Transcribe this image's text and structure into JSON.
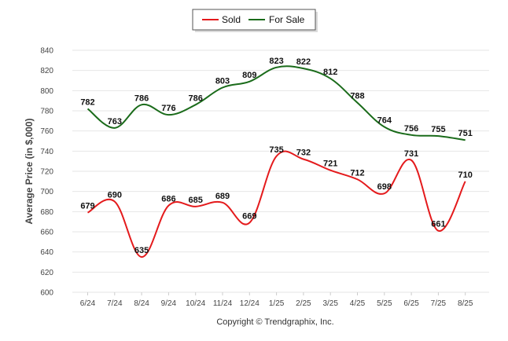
{
  "chart_data": {
    "type": "line",
    "categories": [
      "6/24",
      "7/24",
      "8/24",
      "9/24",
      "10/24",
      "11/24",
      "12/24",
      "1/25",
      "2/25",
      "3/25",
      "4/25",
      "5/25",
      "6/25",
      "7/25",
      "8/25"
    ],
    "series": [
      {
        "name": "Sold",
        "color": "#e41a1c",
        "values": [
          679,
          690,
          635,
          686,
          685,
          689,
          669,
          735,
          732,
          721,
          712,
          698,
          731,
          661,
          710
        ]
      },
      {
        "name": "For Sale",
        "color": "#1a6b1a",
        "values": [
          782,
          763,
          786,
          776,
          786,
          803,
          809,
          823,
          822,
          812,
          788,
          764,
          756,
          755,
          751
        ]
      }
    ],
    "ylabel": "Average Price (in $,000)",
    "ylim": [
      600,
      840
    ],
    "yticks": [
      600,
      620,
      640,
      660,
      680,
      700,
      720,
      740,
      760,
      780,
      800,
      820,
      840
    ],
    "grid": true,
    "legend": "top-center",
    "footer": "Copyright © Trendgraphix, Inc."
  }
}
